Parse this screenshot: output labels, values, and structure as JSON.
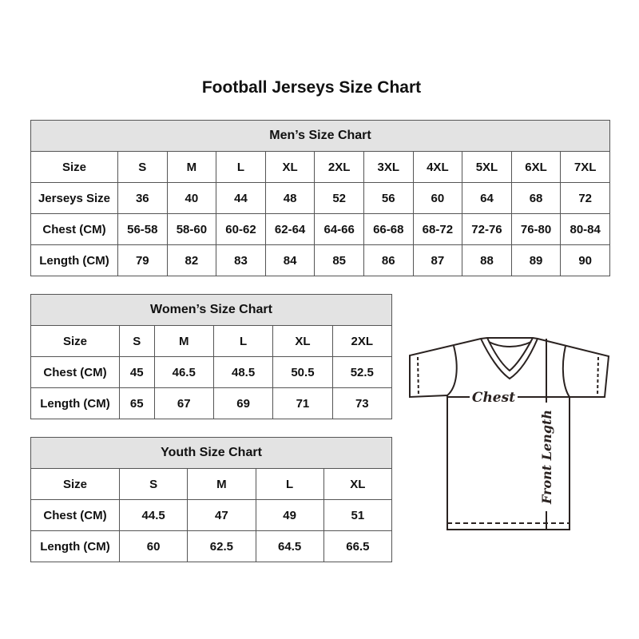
{
  "title": "Football Jerseys Size Chart",
  "mens": {
    "title": "Men’s Size Chart",
    "rows": [
      [
        "Size",
        "S",
        "M",
        "L",
        "XL",
        "2XL",
        "3XL",
        "4XL",
        "5XL",
        "6XL",
        "7XL"
      ],
      [
        "Jerseys Size",
        "36",
        "40",
        "44",
        "48",
        "52",
        "56",
        "60",
        "64",
        "68",
        "72"
      ],
      [
        "Chest (CM)",
        "56-58",
        "58-60",
        "60-62",
        "62-64",
        "64-66",
        "66-68",
        "68-72",
        "72-76",
        "76-80",
        "80-84"
      ],
      [
        "Length (CM)",
        "79",
        "82",
        "83",
        "84",
        "85",
        "86",
        "87",
        "88",
        "89",
        "90"
      ]
    ]
  },
  "womens": {
    "title": "Women’s Size Chart",
    "rows": [
      [
        "Size",
        "S",
        "M",
        "L",
        "XL",
        "2XL"
      ],
      [
        "Chest (CM)",
        "45",
        "46.5",
        "48.5",
        "50.5",
        "52.5"
      ],
      [
        "Length (CM)",
        "65",
        "67",
        "69",
        "71",
        "73"
      ]
    ]
  },
  "youth": {
    "title": "Youth Size Chart",
    "rows": [
      [
        "Size",
        "S",
        "M",
        "L",
        "XL"
      ],
      [
        "Chest (CM)",
        "44.5",
        "47",
        "49",
        "51"
      ],
      [
        "Length (CM)",
        "60",
        "62.5",
        "64.5",
        "66.5"
      ]
    ]
  },
  "diagram": {
    "chest_label": "Chest",
    "length_label": "Front Length"
  }
}
